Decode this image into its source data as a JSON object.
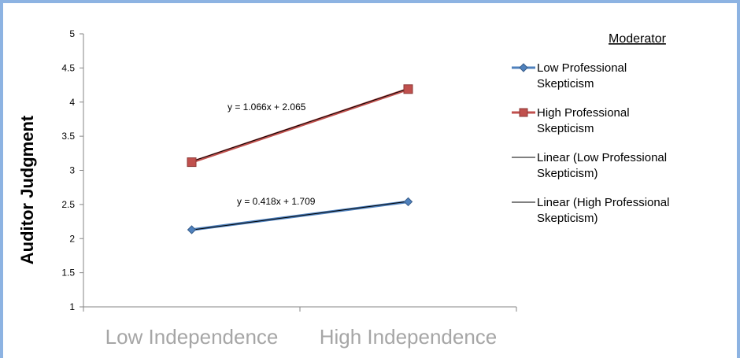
{
  "chart_data": {
    "type": "line",
    "ylabel": "Auditor Judgment",
    "ylim": [
      1,
      5
    ],
    "yticks": [
      1,
      1.5,
      2,
      2.5,
      3,
      3.5,
      4,
      4.5,
      5
    ],
    "categories": [
      "Low Independence",
      "High Independence"
    ],
    "series": [
      {
        "name": "Low Professional Skepticism",
        "values": [
          2.13,
          2.54
        ],
        "color": "#4f81bd",
        "marker": "diamond"
      },
      {
        "name": "High Professional Skepticism",
        "values": [
          3.12,
          4.19
        ],
        "color": "#c0504d",
        "marker": "square"
      }
    ],
    "trendlines": [
      {
        "name": "Linear (Low Professional Skepticism)",
        "equation": "y = 0.418x + 1.709",
        "slope": 0.418,
        "intercept": 1.709,
        "color": "#000000"
      },
      {
        "name": "Linear (High Professional Skepticism)",
        "equation": "y = 1.066x + 2.065",
        "slope": 1.066,
        "intercept": 2.065,
        "color": "#000000"
      }
    ],
    "legend": {
      "title": "Moderator",
      "position": "right",
      "entries": [
        {
          "lines": [
            "Low Professional",
            "Skepticism"
          ],
          "series": 0
        },
        {
          "lines": [
            "High Professional",
            "Skepticism"
          ],
          "series": 1
        },
        {
          "lines": [
            "Linear (Low Professional",
            "Skepticism)"
          ],
          "trendline": 0
        },
        {
          "lines": [
            "Linear (High Professional",
            "Skepticism)"
          ],
          "trendline": 1
        }
      ]
    },
    "grid": false
  }
}
